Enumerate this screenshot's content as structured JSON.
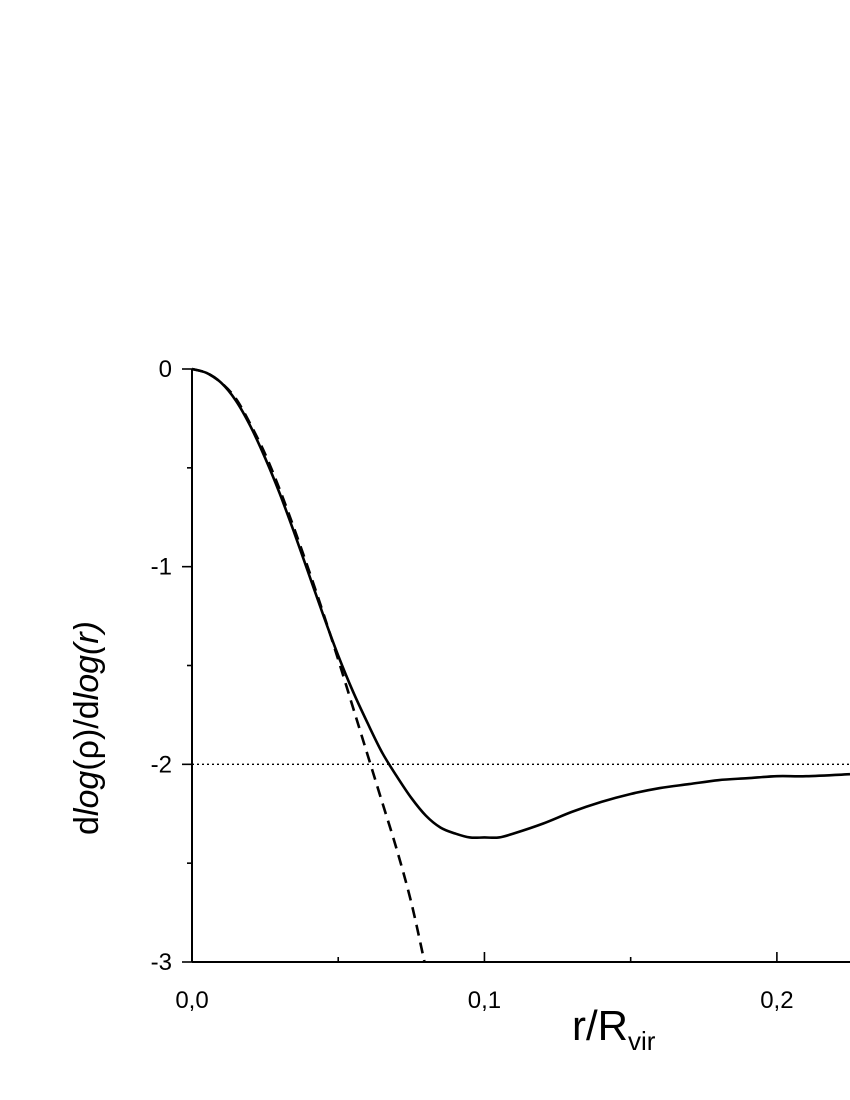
{
  "chart_data": {
    "type": "line",
    "xlabel": {
      "main": "r/R",
      "sub": "vir"
    },
    "ylabel": {
      "p1": "d",
      "p2": "log",
      "p3": "(ρ)/d",
      "p4": "log",
      "p5": "(",
      "p6": "r",
      "p7": ")"
    },
    "xlim": [
      0.0,
      0.225
    ],
    "ylim": [
      -3.0,
      0.0
    ],
    "x_ticks": [
      {
        "value": 0.0,
        "label": "0,0"
      },
      {
        "value": 0.1,
        "label": "0,1"
      },
      {
        "value": 0.2,
        "label": "0,2"
      }
    ],
    "y_ticks": [
      {
        "value": 0,
        "label": "0"
      },
      {
        "value": -1,
        "label": "-1"
      },
      {
        "value": -2,
        "label": "-2"
      },
      {
        "value": -3,
        "label": "-3"
      }
    ],
    "x_minor_ticks": [
      0.05,
      0.15
    ],
    "y_minor_ticks": [
      -0.5,
      -1.5,
      -2.5
    ],
    "grid": false,
    "legend": "none",
    "series": [
      {
        "style": "solid",
        "x": [
          0.0,
          0.005,
          0.01,
          0.015,
          0.02,
          0.025,
          0.03,
          0.035,
          0.04,
          0.045,
          0.05,
          0.055,
          0.06,
          0.065,
          0.07,
          0.075,
          0.08,
          0.085,
          0.09,
          0.095,
          0.1,
          0.105,
          0.11,
          0.12,
          0.13,
          0.14,
          0.15,
          0.16,
          0.17,
          0.18,
          0.19,
          0.2,
          0.21,
          0.225
        ],
        "y": [
          0.0,
          -0.02,
          -0.07,
          -0.16,
          -0.29,
          -0.45,
          -0.63,
          -0.83,
          -1.04,
          -1.25,
          -1.45,
          -1.63,
          -1.79,
          -1.94,
          -2.06,
          -2.17,
          -2.26,
          -2.32,
          -2.35,
          -2.37,
          -2.37,
          -2.37,
          -2.35,
          -2.3,
          -2.24,
          -2.19,
          -2.15,
          -2.12,
          -2.1,
          -2.08,
          -2.07,
          -2.06,
          -2.06,
          -2.05
        ]
      },
      {
        "style": "dashed",
        "x": [
          0.0,
          0.005,
          0.01,
          0.015,
          0.02,
          0.025,
          0.03,
          0.035,
          0.04,
          0.045,
          0.05,
          0.055,
          0.06,
          0.065,
          0.07,
          0.075,
          0.0795
        ],
        "y": [
          0.0,
          -0.02,
          -0.07,
          -0.15,
          -0.28,
          -0.43,
          -0.61,
          -0.81,
          -1.02,
          -1.24,
          -1.47,
          -1.71,
          -1.95,
          -2.19,
          -2.43,
          -2.7,
          -3.0
        ]
      },
      {
        "style": "dotted",
        "x": [
          0.0,
          0.225
        ],
        "y": [
          -2.0,
          -2.0
        ]
      }
    ]
  }
}
